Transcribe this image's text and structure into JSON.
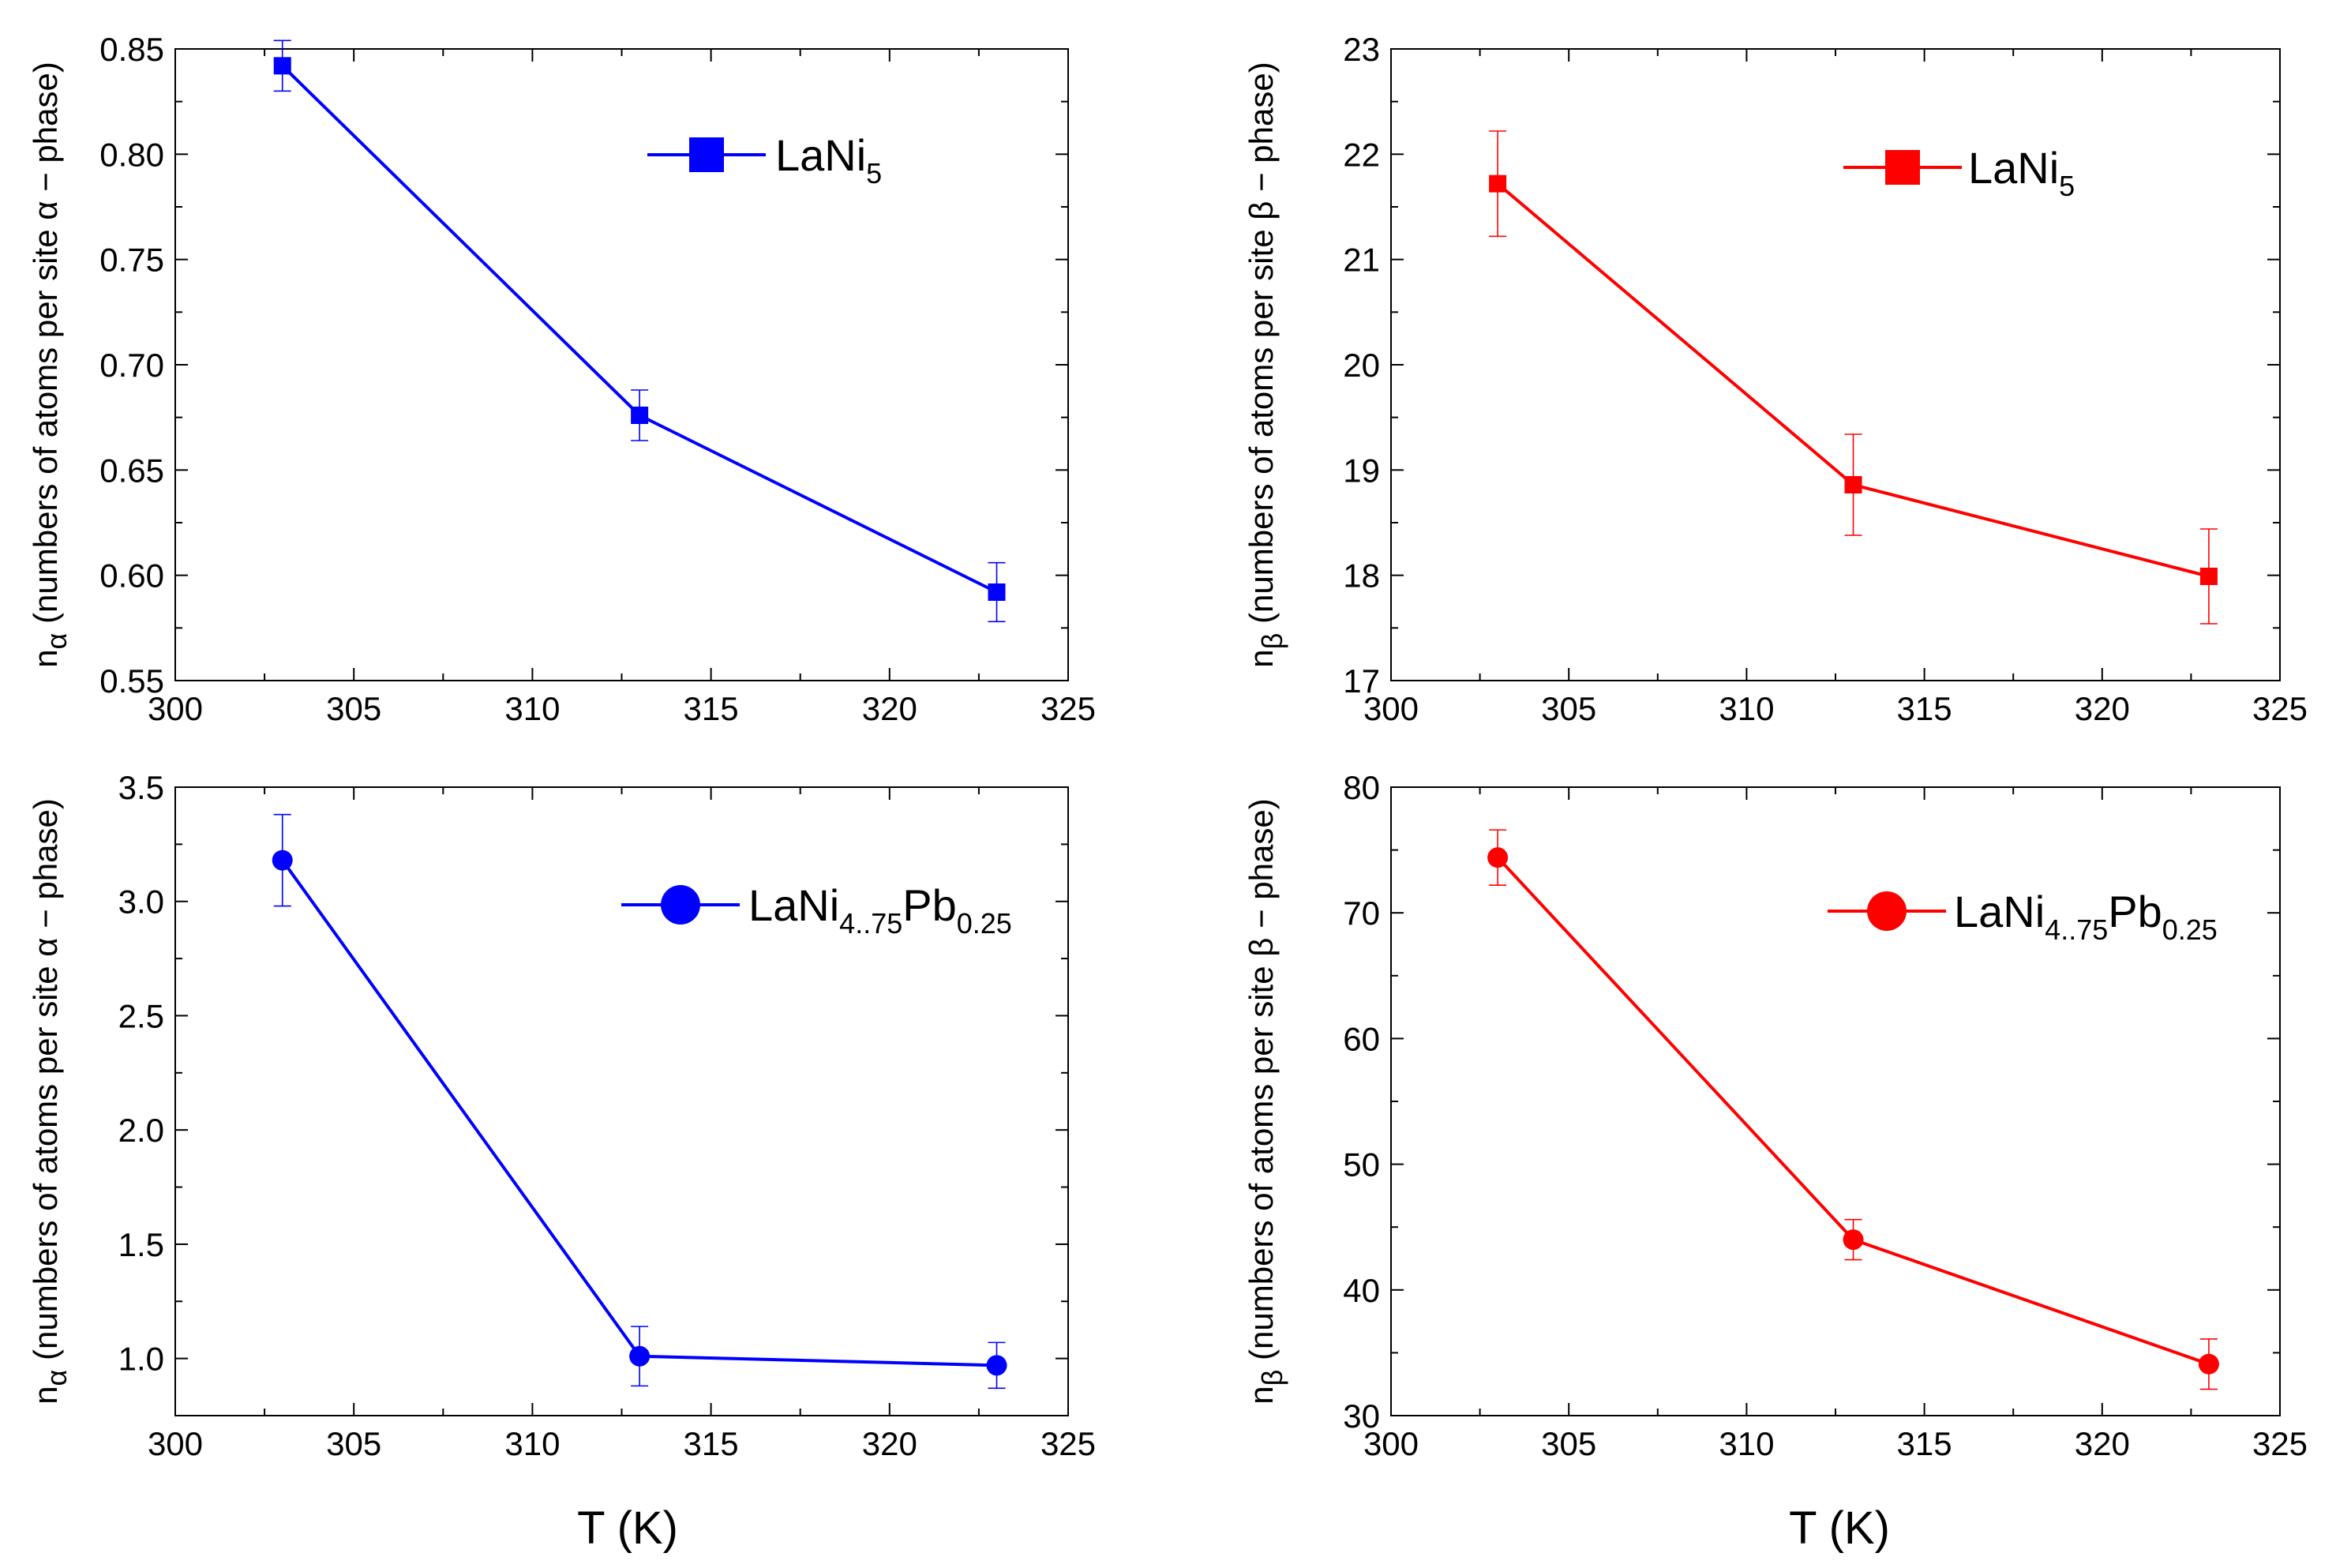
{
  "figure": {
    "x_title_bottom": "T (K)"
  },
  "chart_data": [
    {
      "id": "p1",
      "type": "line",
      "marker": "square",
      "color": "#0000ff",
      "title": "",
      "xlabel": "",
      "ylabel": {
        "sym": "n",
        "sub": "α",
        "text": "(numbers of atoms per site α − phase)"
      },
      "xlim": [
        300,
        325
      ],
      "ylim": [
        0.55,
        0.85
      ],
      "xticks": [
        "300",
        "305",
        "310",
        "315",
        "320",
        "325"
      ],
      "yticks": [
        "0.55",
        "0.60",
        "0.65",
        "0.70",
        "0.75",
        "0.80",
        "0.85"
      ],
      "x": [
        303,
        313,
        323
      ],
      "y": [
        0.842,
        0.676,
        0.592
      ],
      "err": [
        0.012,
        0.012,
        0.014
      ],
      "legend": {
        "parts": [
          [
            "LaNi",
            ""
          ],
          [
            "5",
            "sub"
          ]
        ],
        "position": "top-right"
      }
    },
    {
      "id": "p2",
      "type": "line",
      "marker": "square",
      "color": "#ff0000",
      "title": "",
      "xlabel": "",
      "ylabel": {
        "sym": "n",
        "sub": "β",
        "text": "(numbers of atoms per site β − phase)"
      },
      "xlim": [
        300,
        325
      ],
      "ylim": [
        17,
        23
      ],
      "xticks": [
        "300",
        "305",
        "310",
        "315",
        "320",
        "325"
      ],
      "yticks": [
        "17",
        "18",
        "19",
        "20",
        "21",
        "22",
        "23"
      ],
      "x": [
        303,
        313,
        323
      ],
      "y": [
        21.72,
        18.86,
        17.99
      ],
      "err": [
        0.5,
        0.48,
        0.45
      ],
      "legend": {
        "parts": [
          [
            "LaNi",
            ""
          ],
          [
            "5",
            "sub"
          ]
        ],
        "position": "top-right"
      }
    },
    {
      "id": "p3",
      "type": "line",
      "marker": "circle",
      "color": "#0000ff",
      "title": "",
      "xlabel": "T (K)",
      "ylabel": {
        "sym": "n",
        "sub": "α",
        "text": "(numbers of atoms per site α − phase)"
      },
      "xlim": [
        300,
        325
      ],
      "ylim": [
        0.75,
        3.5
      ],
      "xticks": [
        "300",
        "305",
        "310",
        "315",
        "320",
        "325"
      ],
      "yticks": [
        "1.0",
        "1.5",
        "2.0",
        "2.5",
        "3.0",
        "3.5"
      ],
      "ytick_values": [
        1.0,
        1.5,
        2.0,
        2.5,
        3.0,
        3.5
      ],
      "x": [
        303,
        313,
        323
      ],
      "y": [
        3.18,
        1.01,
        0.97
      ],
      "err": [
        0.2,
        0.13,
        0.1
      ],
      "legend": {
        "parts": [
          [
            "LaNi",
            ""
          ],
          [
            "4..75",
            "sub"
          ],
          [
            "Pb",
            ""
          ],
          [
            "0.25",
            "sub"
          ]
        ],
        "position": "top-right"
      }
    },
    {
      "id": "p4",
      "type": "line",
      "marker": "circle",
      "color": "#ff0000",
      "title": "",
      "xlabel": "T (K)",
      "ylabel": {
        "sym": "n",
        "sub": "β",
        "text": "(numbers of atoms per site β  − phase)"
      },
      "xlim": [
        300,
        325
      ],
      "ylim": [
        30,
        80
      ],
      "xticks": [
        "300",
        "305",
        "310",
        "315",
        "320",
        "325"
      ],
      "yticks": [
        "30",
        "40",
        "50",
        "60",
        "70",
        "80"
      ],
      "x": [
        303,
        313,
        323
      ],
      "y": [
        74.4,
        44.0,
        34.1
      ],
      "err": [
        2.2,
        1.6,
        2.0
      ],
      "legend": {
        "parts": [
          [
            "LaNi",
            ""
          ],
          [
            "4..75",
            "sub"
          ],
          [
            "Pb",
            ""
          ],
          [
            "0.25",
            "sub"
          ]
        ],
        "position": "top-right"
      }
    }
  ]
}
